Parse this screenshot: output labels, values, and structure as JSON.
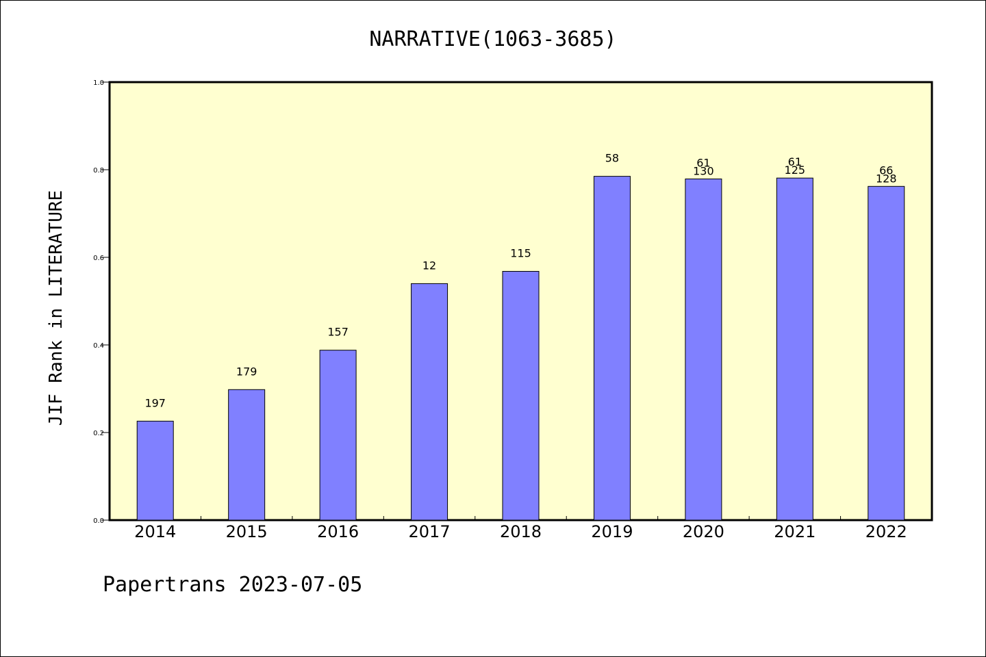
{
  "chart_data": {
    "type": "bar",
    "title": "NARRATIVE(1063-3685)",
    "xlabel": "",
    "ylabel": "JIF Rank in LITERATURE",
    "ylim": [
      0,
      1.0
    ],
    "yticks": [
      "0.0",
      "0.2",
      "0.4",
      "0.6",
      "0.8",
      "1.0"
    ],
    "categories": [
      "2014",
      "2015",
      "2016",
      "2017",
      "2018",
      "2019",
      "2020",
      "2021",
      "2022"
    ],
    "values": [
      0.226,
      0.298,
      0.388,
      0.54,
      0.568,
      0.785,
      0.779,
      0.781,
      0.762
    ],
    "labels": [
      [
        "197"
      ],
      [
        "179"
      ],
      [
        "157"
      ],
      [
        "12"
      ],
      [
        "115"
      ],
      [
        "58"
      ],
      [
        "61",
        "130"
      ],
      [
        "61",
        "125"
      ],
      [
        "66",
        "128"
      ]
    ],
    "colors": {
      "bar": "#8080ff",
      "plot_background": "#ffffd0"
    },
    "grid": false
  },
  "footer": {
    "text": "Papertrans 2023-07-05"
  }
}
